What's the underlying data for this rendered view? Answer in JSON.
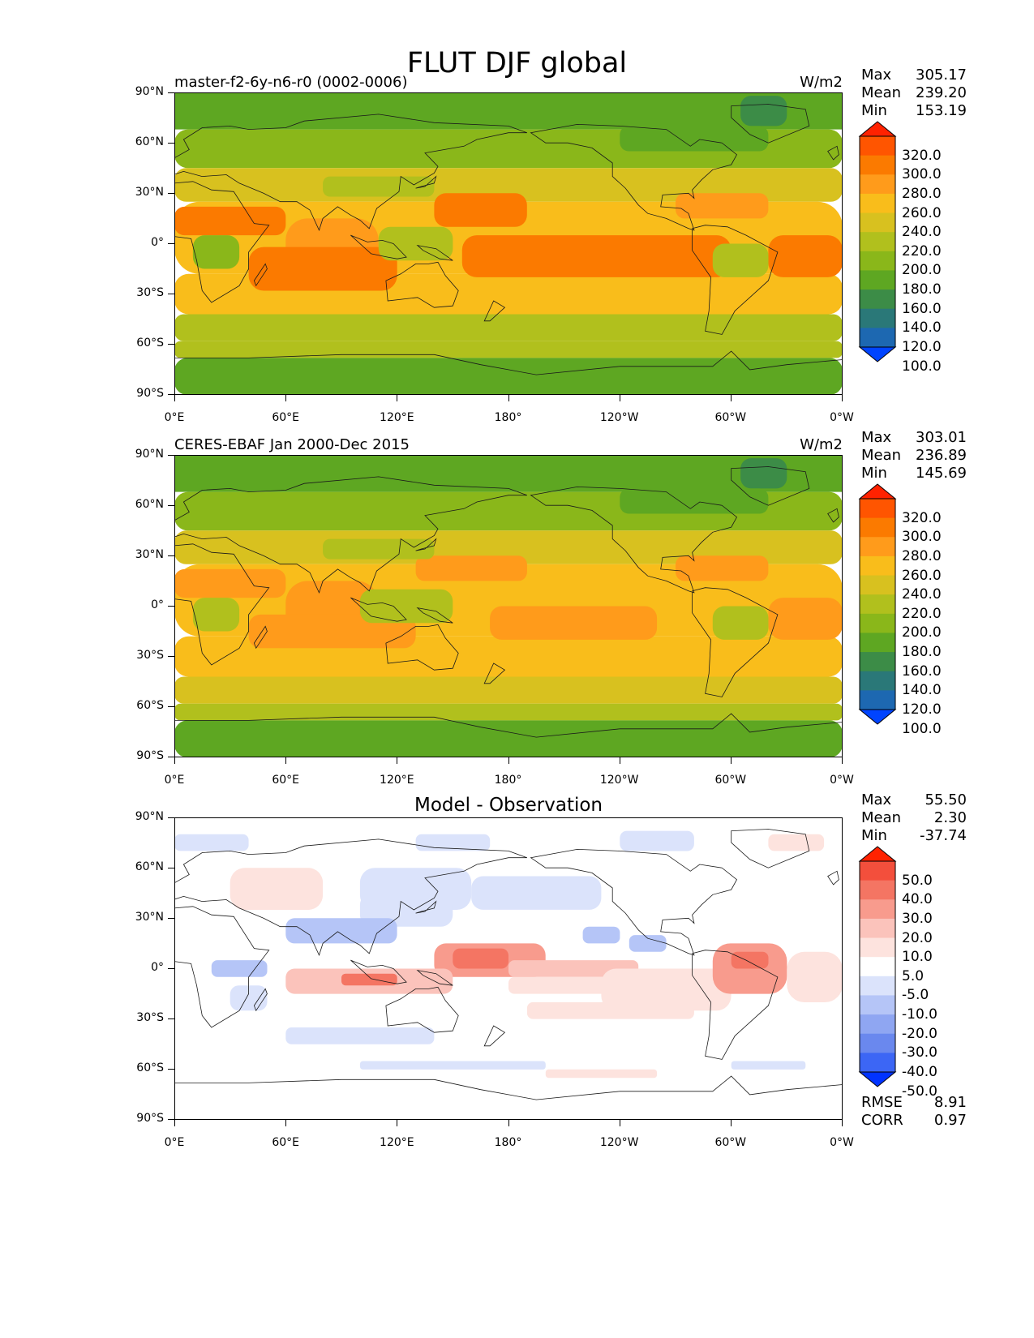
{
  "figure_title": "FLUT DJF global",
  "lat_ticks": [
    "90°N",
    "60°N",
    "30°N",
    "0°",
    "30°S",
    "60°S",
    "90°S"
  ],
  "lon_ticks": [
    "0°E",
    "60°E",
    "120°E",
    "180°",
    "120°W",
    "60°W",
    "0°W"
  ],
  "stat_labels": {
    "max": "Max",
    "mean": "Mean",
    "min": "Min"
  },
  "metric_labels": {
    "rmse": "RMSE",
    "corr": "CORR"
  },
  "panels": [
    {
      "id": "model",
      "title": "master-f2-6y-n6-r0 (0002-0006)",
      "units": "W/m2",
      "stats": {
        "max": "305.17",
        "mean": "239.20",
        "min": "153.19"
      },
      "levels": [
        "320.0",
        "300.0",
        "280.0",
        "260.0",
        "240.0",
        "220.0",
        "200.0",
        "180.0",
        "160.0",
        "140.0",
        "120.0",
        "100.0"
      ],
      "colors": [
        "#ff2200",
        "#ff5500",
        "#fb7a00",
        "#ff9b1b",
        "#f9bd1b",
        "#d8c11f",
        "#b1c01d",
        "#8ab71a",
        "#5ea722",
        "#3c8c47",
        "#2a7878",
        "#1d68b1",
        "#0044ff"
      ]
    },
    {
      "id": "obs",
      "title": "CERES-EBAF Jan 2000-Dec 2015",
      "units": "W/m2",
      "stats": {
        "max": "303.01",
        "mean": "236.89",
        "min": "145.69"
      },
      "levels": [
        "320.0",
        "300.0",
        "280.0",
        "260.0",
        "240.0",
        "220.0",
        "200.0",
        "180.0",
        "160.0",
        "140.0",
        "120.0",
        "100.0"
      ],
      "colors": [
        "#ff2200",
        "#ff5500",
        "#fb7a00",
        "#ff9b1b",
        "#f9bd1b",
        "#d8c11f",
        "#b1c01d",
        "#8ab71a",
        "#5ea722",
        "#3c8c47",
        "#2a7878",
        "#1d68b1",
        "#0044ff"
      ]
    },
    {
      "id": "diff",
      "title": "Model - Observation",
      "units": "",
      "stats": {
        "max": "55.50",
        "mean": "2.30",
        "min": "-37.74"
      },
      "levels": [
        "50.0",
        "40.0",
        "30.0",
        "20.0",
        "10.0",
        "5.0",
        "-5.0",
        "-10.0",
        "-20.0",
        "-30.0",
        "-40.0",
        "-50.0"
      ],
      "colors": [
        "#ff2200",
        "#f34f3c",
        "#f47563",
        "#f89b8d",
        "#fbc3bb",
        "#fde3de",
        "#ffffff",
        "#dbe3fb",
        "#b5c5f7",
        "#8fa6f2",
        "#6a88ee",
        "#3c66f5",
        "#0033ff"
      ],
      "metrics": {
        "rmse": "8.91",
        "corr": "0.97"
      }
    }
  ]
}
